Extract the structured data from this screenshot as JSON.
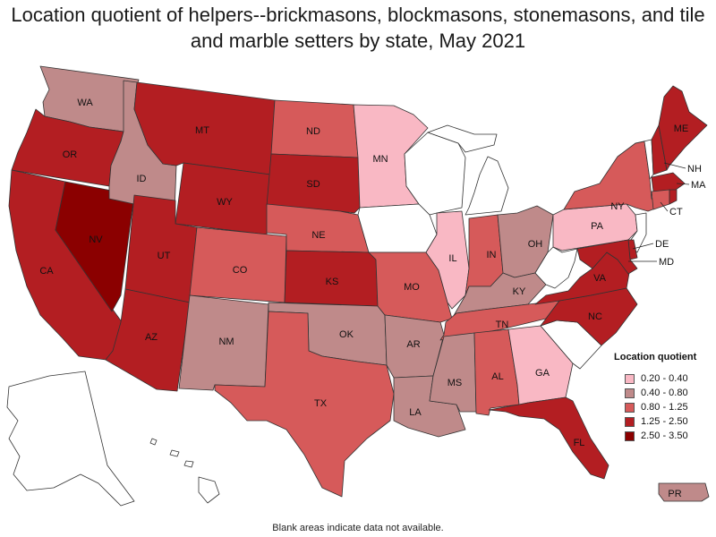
{
  "title": "Location quotient of helpers--brickmasons, blockmasons, stonemasons, and tile and marble setters by state, May 2021",
  "footnote": "Blank areas indicate data not available.",
  "legend": {
    "title": "Location quotient",
    "items": [
      {
        "label": "0.20 - 0.40",
        "color": "#f9b8c4"
      },
      {
        "label": "0.40 - 0.80",
        "color": "#bf8a8a"
      },
      {
        "label": "0.80 - 1.25",
        "color": "#d65a5a"
      },
      {
        "label": "1.25 - 2.50",
        "color": "#b31e22"
      },
      {
        "label": "2.50 - 3.50",
        "color": "#8b0000"
      }
    ]
  },
  "no_data_color": "#ffffff",
  "states": {
    "WA": {
      "label": "WA",
      "class": 1
    },
    "OR": {
      "label": "OR",
      "class": 3
    },
    "CA": {
      "label": "CA",
      "class": 3
    },
    "NV": {
      "label": "NV",
      "class": 4
    },
    "ID": {
      "label": "ID",
      "class": 1
    },
    "MT": {
      "label": "MT",
      "class": 3
    },
    "WY": {
      "label": "WY",
      "class": 3
    },
    "UT": {
      "label": "UT",
      "class": 3
    },
    "AZ": {
      "label": "AZ",
      "class": 3
    },
    "CO": {
      "label": "CO",
      "class": 2
    },
    "NM": {
      "label": "NM",
      "class": 1
    },
    "ND": {
      "label": "ND",
      "class": 2
    },
    "SD": {
      "label": "SD",
      "class": 3
    },
    "NE": {
      "label": "NE",
      "class": 2
    },
    "KS": {
      "label": "KS",
      "class": 3
    },
    "OK": {
      "label": "OK",
      "class": 1
    },
    "TX": {
      "label": "TX",
      "class": 2
    },
    "MN": {
      "label": "MN",
      "class": 0
    },
    "IA": {
      "label": "",
      "class": -1
    },
    "MO": {
      "label": "MO",
      "class": 2
    },
    "AR": {
      "label": "AR",
      "class": 1
    },
    "LA": {
      "label": "LA",
      "class": 1
    },
    "WI": {
      "label": "",
      "class": -1
    },
    "IL": {
      "label": "IL",
      "class": 0
    },
    "MI": {
      "label": "",
      "class": -1
    },
    "IN": {
      "label": "IN",
      "class": 2
    },
    "OH": {
      "label": "OH",
      "class": 1
    },
    "KY": {
      "label": "KY",
      "class": 1
    },
    "TN": {
      "label": "TN",
      "class": 2
    },
    "MS": {
      "label": "MS",
      "class": 1
    },
    "AL": {
      "label": "AL",
      "class": 2
    },
    "GA": {
      "label": "GA",
      "class": 0
    },
    "FL": {
      "label": "FL",
      "class": 3
    },
    "SC": {
      "label": "",
      "class": -1
    },
    "NC": {
      "label": "NC",
      "class": 3
    },
    "VA": {
      "label": "VA",
      "class": 3
    },
    "WV": {
      "label": "",
      "class": -1
    },
    "PA": {
      "label": "PA",
      "class": 0
    },
    "NY": {
      "label": "NY",
      "class": 2
    },
    "VT": {
      "label": "",
      "class": -1
    },
    "NH": {
      "label": "NH",
      "class": 3
    },
    "ME": {
      "label": "ME",
      "class": 3
    },
    "MA": {
      "label": "MA",
      "class": 3
    },
    "CT": {
      "label": "CT",
      "class": 2
    },
    "RI": {
      "label": "",
      "class": 3
    },
    "NJ": {
      "label": "",
      "class": -1
    },
    "DE": {
      "label": "DE",
      "class": 3
    },
    "MD": {
      "label": "MD",
      "class": 3
    },
    "AK": {
      "label": "",
      "class": -1
    },
    "HI": {
      "label": "",
      "class": -1
    },
    "PR": {
      "label": "PR",
      "class": 1
    }
  }
}
